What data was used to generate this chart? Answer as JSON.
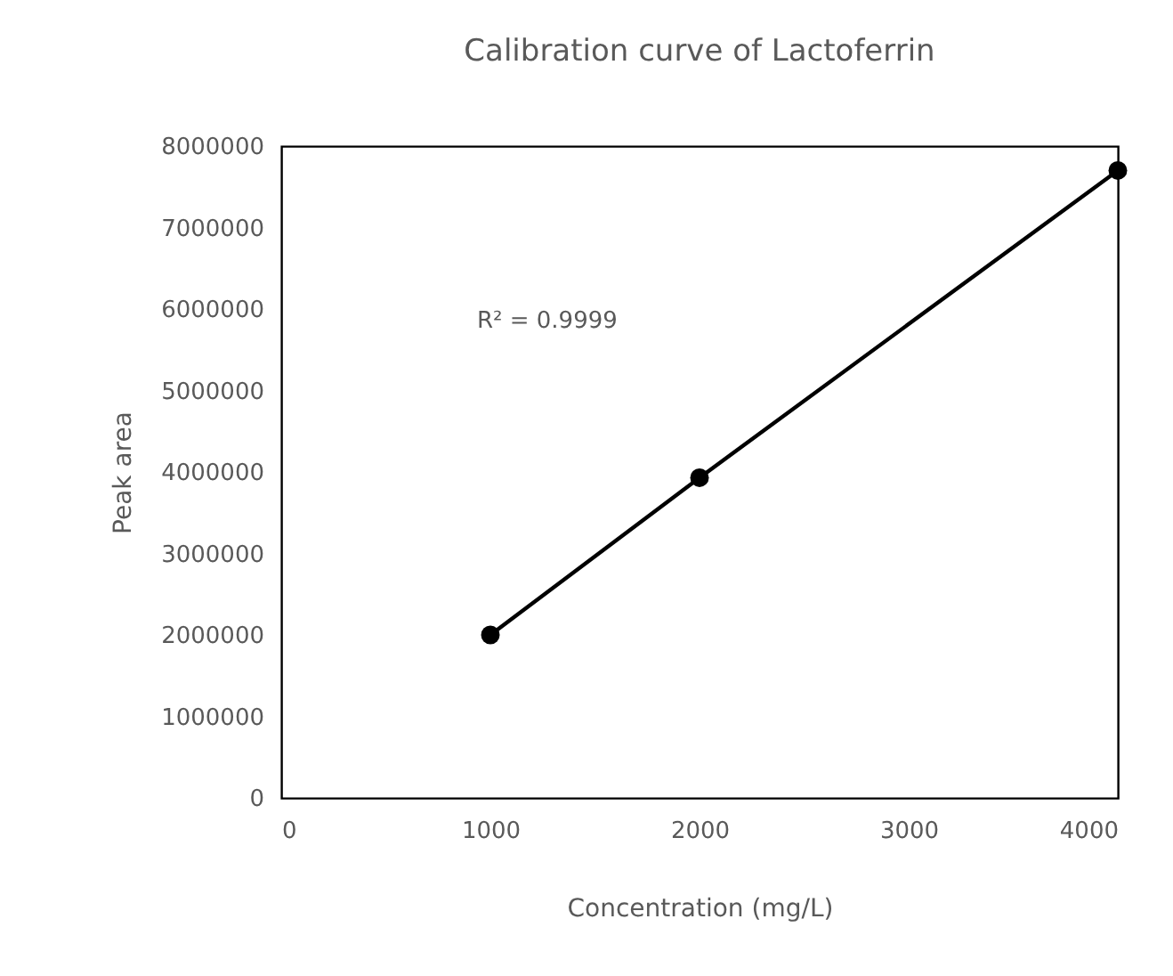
{
  "chart_data": {
    "type": "line",
    "title": "Calibration curve of Lactoferrin",
    "xlabel": "Concentration (mg/L)",
    "ylabel": "Peak area",
    "x": [
      1000,
      2000,
      4000
    ],
    "series": [
      {
        "color": "#000000",
        "values": [
          2000000,
          3930000,
          7700000
        ]
      }
    ],
    "xlim": [
      0,
      4000
    ],
    "xticks": [
      0,
      1000,
      2000,
      3000,
      4000
    ],
    "ylim": [
      0,
      8000000
    ],
    "yticks": [
      0,
      1000000,
      2000000,
      3000000,
      4000000,
      5000000,
      6000000,
      7000000,
      8000000
    ],
    "annotations": [
      "R² = 0.9999"
    ],
    "marker": "circle",
    "line_style": "solid",
    "grid": false
  }
}
